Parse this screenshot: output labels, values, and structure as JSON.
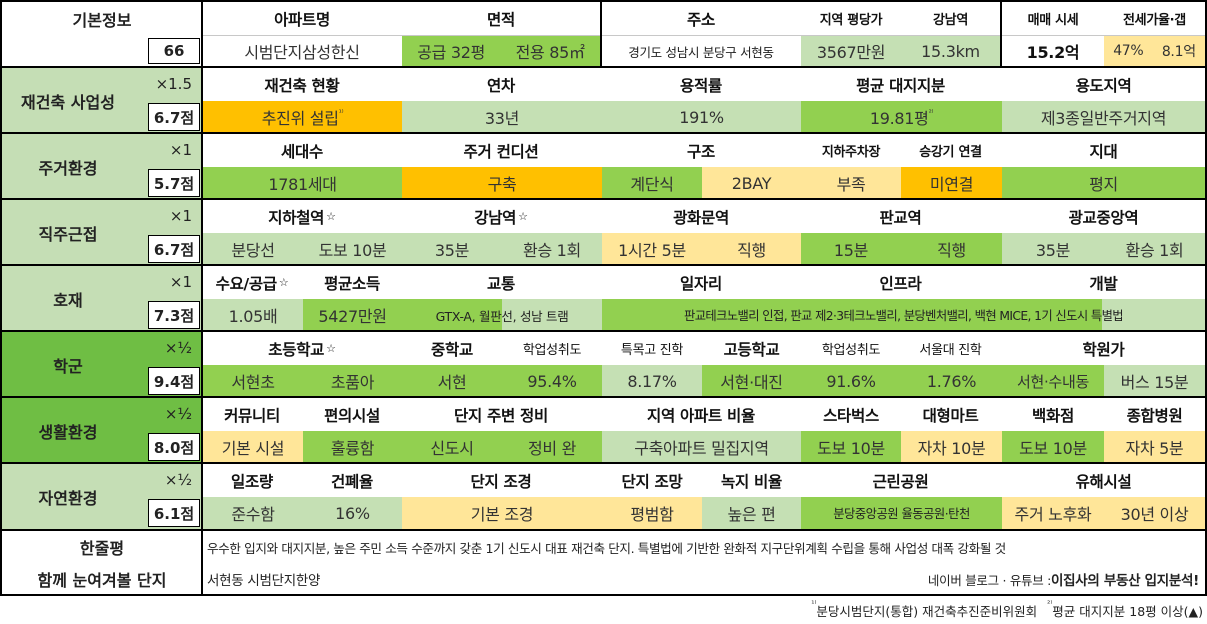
{
  "colors": {
    "section_green": "#c5deb5",
    "section_green_dark": "#6fbe44",
    "value_green": "#92d050",
    "light_green": "#c5e0b4",
    "orange": "#ffc000",
    "light_orange": "#ffe699"
  },
  "basic": {
    "label": "기본정보",
    "number": "66",
    "headers": {
      "apt": "아파트명",
      "area": "면적",
      "address": "주소",
      "region_price": "지역 평당가",
      "gangnam": "강남역",
      "sale_price": "매매 시세",
      "jeonse": "전세가율·갭"
    },
    "values": {
      "apt": "시범단지삼성한신",
      "area_supply": "공급 32평",
      "area_exclusive": "전용 85㎡",
      "address": "경기도 성남시 분당구 서현동",
      "region_price": "3567만원",
      "gangnam": "15.3km",
      "sale_price": "15.2억",
      "jeonse_rate": "47%",
      "jeonse_gap": "8.1억"
    }
  },
  "sections": [
    {
      "label": "재건축 사업성",
      "multiplier": "×1.5",
      "score": "6.7점"
    },
    {
      "label": "주거환경",
      "multiplier": "×1",
      "score": "5.7점"
    },
    {
      "label": "직주근접",
      "multiplier": "×1",
      "score": "6.7점"
    },
    {
      "label": "호재",
      "multiplier": "×1",
      "score": "7.3점"
    },
    {
      "label": "학군",
      "multiplier": "×½",
      "score": "9.4점"
    },
    {
      "label": "생활환경",
      "multiplier": "×½",
      "score": "8.0점"
    },
    {
      "label": "자연환경",
      "multiplier": "×½",
      "score": "6.1점"
    }
  ],
  "rebuild": {
    "headers": {
      "status": "재건축 현황",
      "age": "연차",
      "far": "용적률",
      "land": "평균 대지지분",
      "zone": "용도지역"
    },
    "values": {
      "status": "추진위 설립",
      "status_note": "¹⁾",
      "age": "33년",
      "far": "191%",
      "land": "19.81평",
      "land_note": "²⁾",
      "zone": "제3종일반주거지역"
    }
  },
  "living": {
    "headers": {
      "households": "세대수",
      "condition": "주거 컨디션",
      "structure": "구조",
      "parking": "지하주차장",
      "elevator": "승강기 연결",
      "terrain": "지대"
    },
    "values": {
      "households": "1781세대",
      "condition": "구축",
      "structure_a": "계단식",
      "structure_b": "2BAY",
      "parking": "부족",
      "elevator": "미연결",
      "terrain": "평지"
    }
  },
  "commute": {
    "headers": {
      "subway": "지하철역",
      "gangnam": "강남역",
      "gwanghwamun": "광화문역",
      "pangyo": "판교역",
      "gwanggyo": "광교중앙역"
    },
    "star": "☆",
    "values": {
      "subway_a": "분당선",
      "subway_b": "도보 10분",
      "gangnam_a": "35분",
      "gangnam_b": "환승 1회",
      "gwanghwamun_a": "1시간 5분",
      "gwanghwamun_b": "직행",
      "pangyo_a": "15분",
      "pangyo_b": "직행",
      "gwanggyo_a": "35분",
      "gwanggyo_b": "환승 1회"
    }
  },
  "hojae": {
    "headers": {
      "supply": "수요/공급",
      "income": "평균소득",
      "traffic": "교통",
      "jobs": "일자리",
      "infra": "인프라",
      "dev": "개발"
    },
    "values": {
      "supply": "1.05배",
      "income": "5427만원",
      "traffic": "GTX-A, 월판선, 성남 트램",
      "jobs_infra_dev": "판교테크노밸리 인접, 판교 제2·3테크노밸리, 분당벤처밸리, 백현 MICE, 1기 신도시 특별법"
    }
  },
  "school": {
    "headers": {
      "elem": "초등학교",
      "middle": "중학교",
      "mid_score": "학업성취도",
      "mid_special": "특목고 진학",
      "high": "고등학교",
      "high_score": "학업성취도",
      "snu": "서울대 진학",
      "academy": "학원가"
    },
    "values": {
      "elem_a": "서현초",
      "elem_b": "초품아",
      "middle": "서현",
      "mid_score": "95.4%",
      "mid_special": "8.17%",
      "high": "서현·대진",
      "high_score": "91.6%",
      "snu": "1.76%",
      "academy_a": "서현·수내동",
      "academy_b": "버스 15분"
    }
  },
  "life": {
    "headers": {
      "community": "커뮤니티",
      "convenience": "편의시설",
      "surround": "단지 주변 정비",
      "region_ratio": "지역 아파트 비율",
      "starbucks": "스타벅스",
      "mart": "대형마트",
      "dept": "백화점",
      "hospital": "종합병원"
    },
    "values": {
      "community": "기본 시설",
      "convenience": "훌륭함",
      "surround_a": "신도시",
      "surround_b": "정비 완",
      "region_ratio": "구축아파트 밀집지역",
      "starbucks": "도보 10분",
      "mart": "자차 10분",
      "dept": "도보 10분",
      "hospital": "자차 5분"
    }
  },
  "nature": {
    "headers": {
      "sunlight": "일조량",
      "bcr": "건폐율",
      "landscape": "단지 조경",
      "view": "단지 조망",
      "green": "녹지 비율",
      "park": "근린공원",
      "hazard": "유해시설"
    },
    "values": {
      "sunlight": "준수함",
      "bcr": "16%",
      "landscape": "기본 조경",
      "view": "평범함",
      "green": "높은 편",
      "park": "분당중앙공원 율동공원·탄천",
      "hazard_a": "주거 노후화",
      "hazard_b": "30년 이상"
    }
  },
  "summary": {
    "label": "한줄평",
    "text": "우수한 입지와 대지지분, 높은 주민 소득 수준까지 갖춘 1기 신도시 대표 재건축 단지. 특별법에 기반한 완화적 지구단위계획 수립을 통해 사업성 대폭 강화될 것"
  },
  "related": {
    "label": "함께 눈여겨볼 단지",
    "text": "서현동 시범단지한양",
    "source": "네이버 블로그 · 유튜브 : ",
    "brand": "이집사의 부동산 입지분석!"
  },
  "footnote": {
    "one_mark": "¹⁾",
    "one": "분당시범단지(통합) 재건축추진준비위원회",
    "two_mark": "²⁾",
    "two": "평균 대지지분 18평 이상(▲)"
  }
}
